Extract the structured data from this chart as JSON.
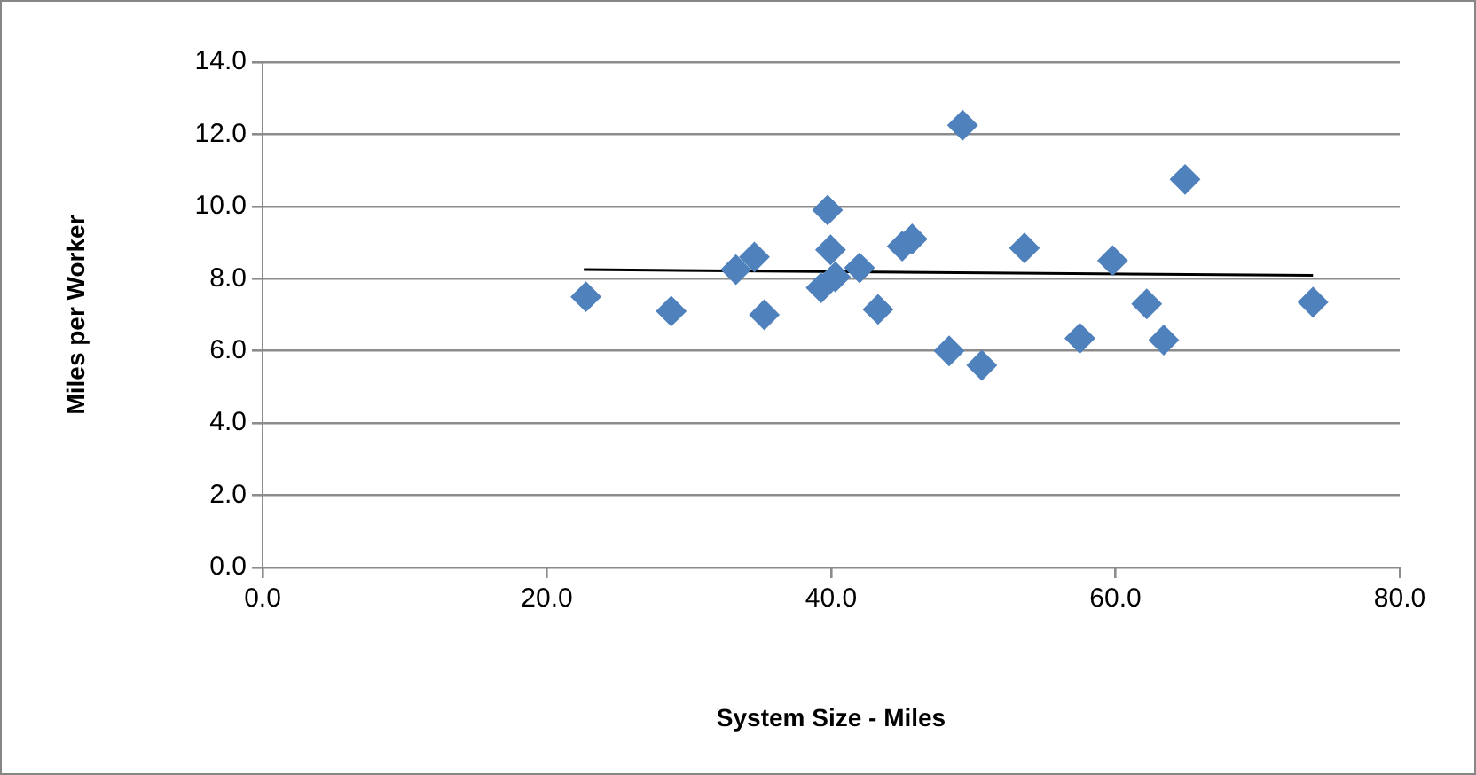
{
  "chart_data": {
    "type": "scatter",
    "xlabel": "System Size - Miles",
    "ylabel": "Miles per Worker",
    "xlim": [
      0,
      80
    ],
    "xticks": [
      {
        "value": 0,
        "label": "0.0"
      },
      {
        "value": 20,
        "label": "20.0"
      },
      {
        "value": 40,
        "label": "40.0"
      },
      {
        "value": 60,
        "label": "60.0"
      },
      {
        "value": 80,
        "label": "80.0"
      }
    ],
    "ylim": [
      0,
      14
    ],
    "yticks": [
      {
        "value": 0,
        "label": "0.0"
      },
      {
        "value": 2,
        "label": "2.0"
      },
      {
        "value": 4,
        "label": "4.0"
      },
      {
        "value": 6,
        "label": "6.0"
      },
      {
        "value": 8,
        "label": "8.0"
      },
      {
        "value": 10,
        "label": "10.0"
      },
      {
        "value": 12,
        "label": "12.0"
      },
      {
        "value": 14,
        "label": "14.0"
      }
    ],
    "grid": "y",
    "legend": false,
    "marker": "diamond",
    "series": [
      {
        "type": "scatter",
        "color": "#4f81bd",
        "x": [
          22.75,
          28.75,
          33.3,
          34.6,
          35.3,
          39.75,
          39.96,
          39.3,
          40.3,
          42.0,
          43.3,
          45.0,
          45.7,
          48.3,
          49.25,
          50.6,
          53.6,
          57.5,
          59.8,
          62.2,
          63.4,
          64.9,
          73.9
        ],
        "values": [
          7.5,
          7.1,
          8.25,
          8.6,
          7.0,
          9.9,
          8.8,
          7.75,
          8.05,
          8.3,
          7.15,
          8.9,
          9.1,
          6.0,
          12.25,
          5.6,
          8.85,
          6.35,
          8.5,
          7.3,
          6.3,
          10.75,
          7.35
        ]
      },
      {
        "type": "line",
        "color": "#000000",
        "marker": "none",
        "x": [
          22.6,
          73.9
        ],
        "values": [
          8.25,
          8.09
        ]
      }
    ]
  }
}
